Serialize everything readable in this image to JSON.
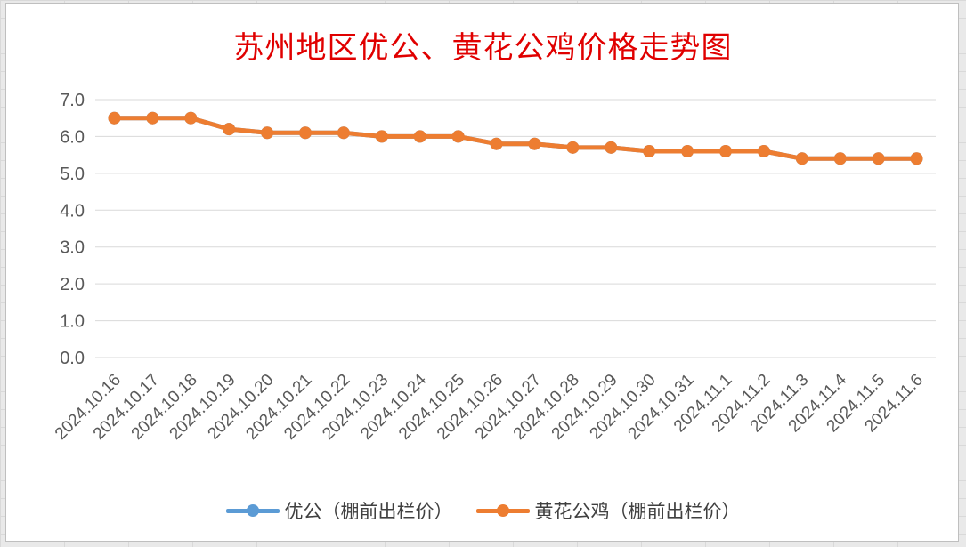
{
  "chart_data": {
    "type": "line",
    "title": "苏州地区优公、黄花公鸡价格走势图",
    "xlabel": "",
    "ylabel": "",
    "categories": [
      "2024.10.16",
      "2024.10.17",
      "2024.10.18",
      "2024.10.19",
      "2024.10.20",
      "2024.10.21",
      "2024.10.22",
      "2024.10.23",
      "2024.10.24",
      "2024.10.25",
      "2024.10.26",
      "2024.10.27",
      "2024.10.28",
      "2024.10.29",
      "2024.10.30",
      "2024.10.31",
      "2024.11.1",
      "2024.11.2",
      "2024.11.3",
      "2024.11.4",
      "2024.11.5",
      "2024.11.6"
    ],
    "ylim": [
      0,
      7
    ],
    "yticks": [
      "0.0",
      "1.0",
      "2.0",
      "3.0",
      "4.0",
      "5.0",
      "6.0",
      "7.0"
    ],
    "grid": true,
    "legend_position": "bottom",
    "series": [
      {
        "name": "优公（棚前出栏价）",
        "color": "#5b9bd5",
        "values": [
          6.5,
          6.5,
          6.5,
          6.2,
          6.1,
          6.1,
          6.1,
          6.0,
          6.0,
          6.0,
          5.8,
          5.8,
          5.7,
          5.7,
          5.6,
          5.6,
          5.6,
          5.6,
          5.4,
          5.4,
          5.4,
          5.4
        ]
      },
      {
        "name": "黄花公鸡（棚前出栏价）",
        "color": "#ed7d31",
        "values": [
          6.5,
          6.5,
          6.5,
          6.2,
          6.1,
          6.1,
          6.1,
          6.0,
          6.0,
          6.0,
          5.8,
          5.8,
          5.7,
          5.7,
          5.6,
          5.6,
          5.6,
          5.6,
          5.4,
          5.4,
          5.4,
          5.4
        ]
      }
    ]
  }
}
